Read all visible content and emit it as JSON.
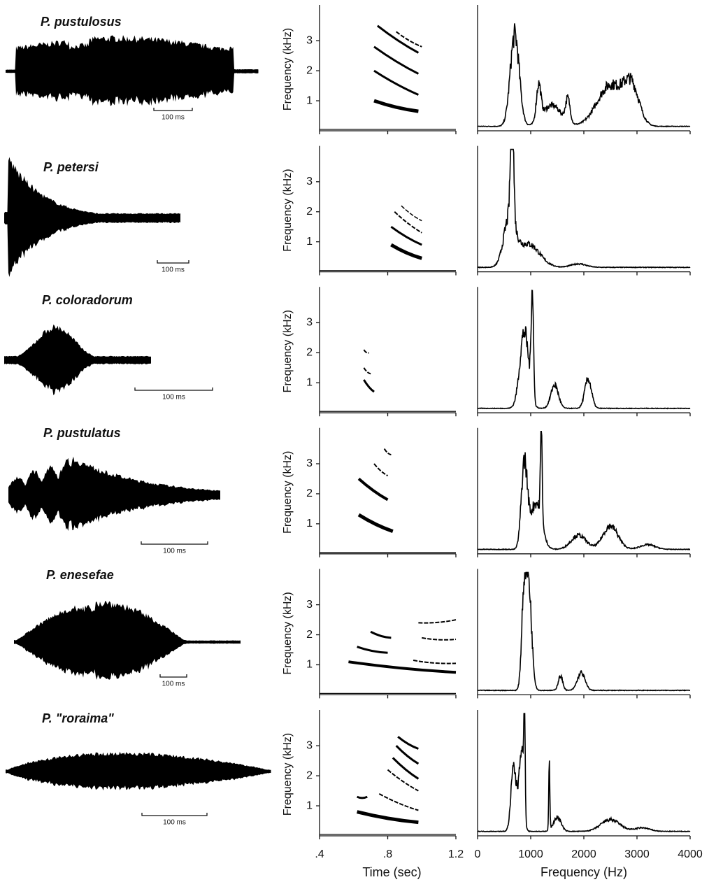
{
  "figure": {
    "rows": [
      {
        "species": "P. pustulosus",
        "scale_label": "100 ms"
      },
      {
        "species": "P. petersi",
        "scale_label": "100 ms"
      },
      {
        "species": "P. coloradorum",
        "scale_label": "100 ms"
      },
      {
        "species": "P. pustulatus",
        "scale_label": "100 ms"
      },
      {
        "species": "P. enesefae",
        "scale_label": "100 ms"
      },
      {
        "species": "P. \"roraima\"",
        "scale_label": "100 ms"
      }
    ],
    "spectrogram": {
      "ylabel": "Frequency (kHz)",
      "ylim": [
        0,
        4.1
      ],
      "yticks": [
        1,
        2,
        3
      ],
      "xlim": [
        0.4,
        1.2
      ],
      "xticks": [
        {
          "value": 0.4,
          "label": ".4"
        },
        {
          "value": 0.8,
          "label": ".8"
        },
        1.2
      ],
      "xlabel": "Time (sec)"
    },
    "spectrum": {
      "xlim": [
        0,
        4000
      ],
      "xticks": [
        0,
        1000,
        2000,
        3000,
        4000
      ],
      "xlabel": "Frequency (Hz)"
    }
  }
}
